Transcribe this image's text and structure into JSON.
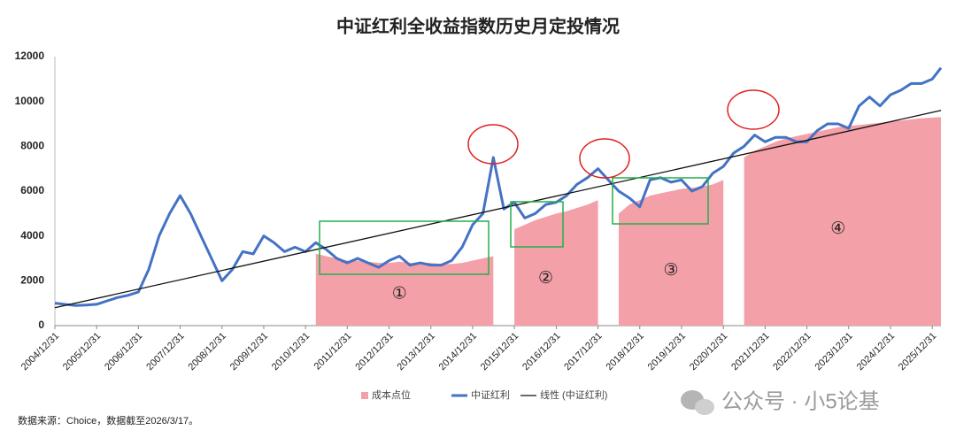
{
  "chart_data": {
    "type": "line",
    "title": "中证红利全收益指数历史月定投情况",
    "source": "数据来源：Choice，数据截至2026/3/17。",
    "watermark": "公众号 · 小5论基",
    "x": [
      "2004/12/31",
      "2005/03/31",
      "2005/06/30",
      "2005/09/30",
      "2005/12/31",
      "2006/03/31",
      "2006/06/30",
      "2006/09/30",
      "2006/12/31",
      "2007/03/31",
      "2007/06/30",
      "2007/09/30",
      "2007/12/31",
      "2008/03/31",
      "2008/06/30",
      "2008/09/30",
      "2008/12/31",
      "2009/03/31",
      "2009/06/30",
      "2009/09/30",
      "2009/12/31",
      "2010/03/31",
      "2010/06/30",
      "2010/09/30",
      "2010/12/31",
      "2011/03/31",
      "2011/06/30",
      "2011/09/30",
      "2011/12/31",
      "2012/03/31",
      "2012/06/30",
      "2012/09/30",
      "2012/12/31",
      "2013/03/31",
      "2013/06/30",
      "2013/09/30",
      "2013/12/31",
      "2014/03/31",
      "2014/06/30",
      "2014/09/30",
      "2014/12/31",
      "2015/03/31",
      "2015/06/30",
      "2015/09/30",
      "2015/12/31",
      "2016/03/31",
      "2016/06/30",
      "2016/09/30",
      "2016/12/31",
      "2017/03/31",
      "2017/06/30",
      "2017/09/30",
      "2017/12/31",
      "2018/03/31",
      "2018/06/30",
      "2018/09/30",
      "2018/12/31",
      "2019/03/31",
      "2019/06/30",
      "2019/09/30",
      "2019/12/31",
      "2020/03/31",
      "2020/06/30",
      "2020/09/30",
      "2020/12/31",
      "2021/03/31",
      "2021/06/30",
      "2021/09/30",
      "2021/12/31",
      "2022/03/31",
      "2022/06/30",
      "2022/09/30",
      "2022/12/31",
      "2023/03/31",
      "2023/06/30",
      "2023/09/30",
      "2023/12/31",
      "2024/03/31",
      "2024/06/30",
      "2024/09/30",
      "2024/12/31",
      "2025/03/31",
      "2025/06/30",
      "2025/09/30",
      "2025/12/31",
      "2026/03/17"
    ],
    "series": [
      {
        "name": "成本点位",
        "kind": "area",
        "color": "#f4a0a8",
        "values": [
          null,
          null,
          null,
          null,
          null,
          null,
          null,
          null,
          null,
          null,
          null,
          null,
          null,
          null,
          null,
          null,
          null,
          null,
          null,
          null,
          null,
          null,
          null,
          null,
          null,
          3200,
          3100,
          3000,
          2900,
          2900,
          2850,
          2800,
          2800,
          2850,
          2800,
          2800,
          2800,
          2750,
          2750,
          2800,
          2900,
          3000,
          3100,
          null,
          4300,
          4500,
          4700,
          4850,
          5000,
          5100,
          5250,
          5400,
          5600,
          null,
          5000,
          5400,
          5600,
          5800,
          5900,
          6000,
          6100,
          6150,
          6200,
          6300,
          6500,
          null,
          7500,
          7800,
          8000,
          8200,
          8350,
          8450,
          8550,
          8650,
          8750,
          8850,
          8900,
          8950,
          9000,
          9050,
          9100,
          9150,
          9200,
          9250,
          9280,
          9300
        ]
      },
      {
        "name": "中证红利",
        "kind": "line",
        "color": "#4472c4",
        "values": [
          1000,
          950,
          900,
          920,
          950,
          1100,
          1250,
          1350,
          1500,
          2500,
          4000,
          5000,
          5800,
          5000,
          4000,
          3000,
          2000,
          2500,
          3300,
          3200,
          4000,
          3700,
          3300,
          3500,
          3300,
          3700,
          3400,
          3000,
          2800,
          3000,
          2800,
          2600,
          2900,
          3100,
          2700,
          2800,
          2700,
          2700,
          2900,
          3500,
          4500,
          5000,
          7500,
          5200,
          5500,
          4800,
          5000,
          5400,
          5500,
          5800,
          6300,
          6600,
          7000,
          6500,
          6000,
          5700,
          5300,
          6500,
          6600,
          6400,
          6500,
          6000,
          6200,
          6800,
          7100,
          7700,
          8000,
          8500,
          8200,
          8400,
          8400,
          8200,
          8200,
          8700,
          9000,
          9000,
          8800,
          9800,
          10200,
          9800,
          10300,
          10500,
          10800,
          10800,
          11000,
          11500
        ]
      },
      {
        "name": "线性 (中证红利)",
        "kind": "trend",
        "color": "#111111",
        "x": [
          "2004/12/31",
          "2026/03/17"
        ],
        "values": [
          800,
          9600
        ]
      }
    ],
    "xlim": [
      "2004/12/31",
      "2026/03/17"
    ],
    "xticks": [
      "2004/12/31",
      "2005/12/31",
      "2006/12/31",
      "2007/12/31",
      "2008/12/31",
      "2009/12/31",
      "2010/12/31",
      "2011/12/31",
      "2012/12/31",
      "2013/12/31",
      "2014/12/31",
      "2015/12/31",
      "2016/12/31",
      "2017/12/31",
      "2018/12/31",
      "2019/12/31",
      "2020/12/31",
      "2021/12/31",
      "2022/12/31",
      "2023/12/31",
      "2024/12/31",
      "2025/12/31"
    ],
    "ylim": [
      0,
      12000
    ],
    "yticks": [
      0,
      2000,
      4000,
      6000,
      8000,
      10000,
      12000
    ],
    "grid": false,
    "legend": "bottom",
    "annotations": [
      {
        "text": "①",
        "x": "2013/03/31",
        "y": 1400
      },
      {
        "text": "②",
        "x": "2016/09/30",
        "y": 2100
      },
      {
        "text": "③",
        "x": "2019/09/30",
        "y": 2450
      },
      {
        "text": "④",
        "x": "2023/09/30",
        "y": 4300
      }
    ]
  }
}
